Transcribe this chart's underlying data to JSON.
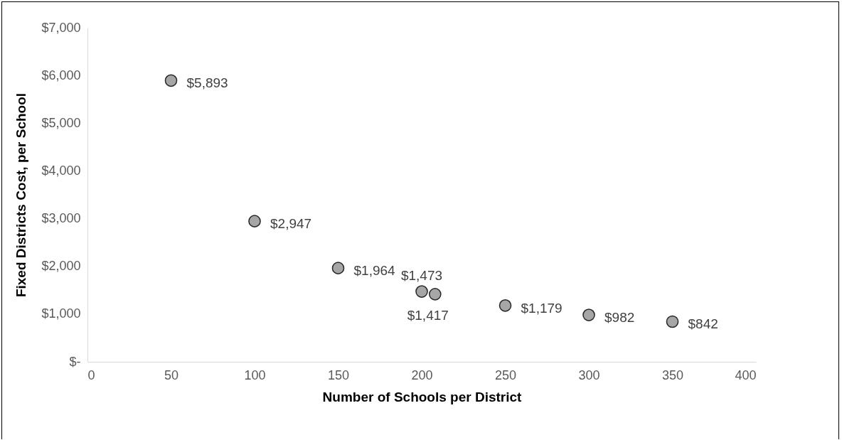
{
  "chart_data": {
    "type": "scatter",
    "xlabel": "Number of Schools per District",
    "ylabel": "Fixed Districts Cost, per School",
    "x": [
      50,
      100,
      150,
      200,
      208,
      250,
      300,
      350
    ],
    "values": [
      5893,
      2947,
      1964,
      1473,
      1417,
      1179,
      982,
      842
    ],
    "value_labels": [
      "$5,893",
      "$2,947",
      "$1,964",
      "$1,473",
      "$1,417",
      "$1,179",
      "$982",
      "$842"
    ],
    "color": "#a6a6a6",
    "marker": "circle",
    "xlim": [
      0,
      400
    ],
    "xticks": [
      0,
      50,
      100,
      150,
      200,
      250,
      300,
      350,
      400
    ],
    "ylim": [
      0,
      7000
    ],
    "yticks": [
      {
        "value": 0,
        "label": "$-"
      },
      {
        "value": 1000,
        "label": "$1,000"
      },
      {
        "value": 2000,
        "label": "$2,000"
      },
      {
        "value": 3000,
        "label": "$3,000"
      },
      {
        "value": 4000,
        "label": "$4,000"
      },
      {
        "value": 5000,
        "label": "$5,000"
      },
      {
        "value": 6000,
        "label": "$6,000"
      },
      {
        "value": 7000,
        "label": "$7,000"
      }
    ],
    "grid": false
  }
}
